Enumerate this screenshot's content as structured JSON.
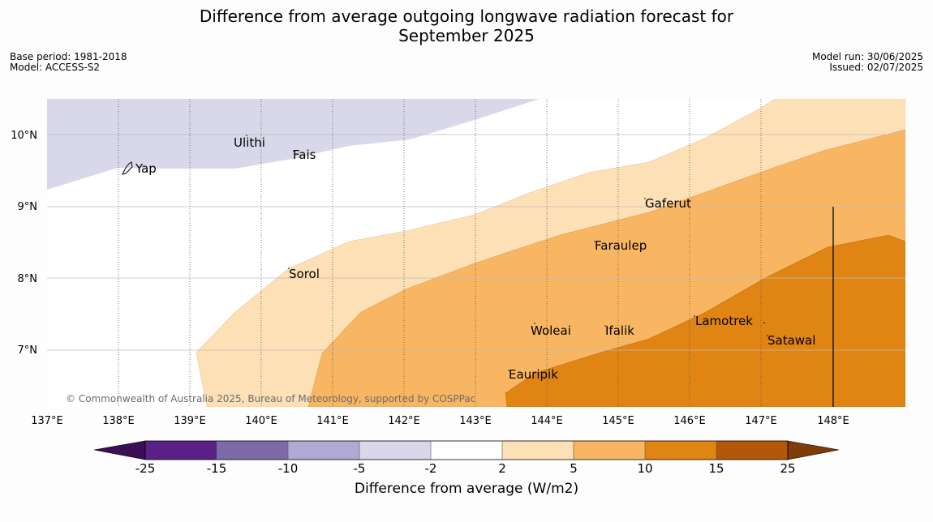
{
  "title": {
    "line1": "Difference from average outgoing longwave radiation forecast for",
    "line2": "September 2025"
  },
  "meta_left": {
    "base_period": "Base period: 1981-2018",
    "model": "Model: ACCESS-S2"
  },
  "meta_right": {
    "model_run": "Model run: 30/06/2025",
    "issued": "Issued: 02/07/2025"
  },
  "map": {
    "lon_labels": [
      "137°E",
      "138°E",
      "139°E",
      "140°E",
      "141°E",
      "142°E",
      "143°E",
      "144°E",
      "145°E",
      "146°E",
      "147°E",
      "148°E"
    ],
    "lat_labels": [
      "10°N",
      "9°N",
      "8°N",
      "7°N"
    ],
    "places": [
      {
        "name": "Ulithi"
      },
      {
        "name": "Fais"
      },
      {
        "name": "Yap"
      },
      {
        "name": "Gaferut"
      },
      {
        "name": "Faraulep"
      },
      {
        "name": "Sorol"
      },
      {
        "name": "Woleai"
      },
      {
        "name": "Ifalik"
      },
      {
        "name": "Lamotrek"
      },
      {
        "name": "Satawal"
      },
      {
        "name": "Eauripik"
      }
    ],
    "copyright": "© Commonwealth of Australia 2025, Bureau of Meteorology, supported by COSPPac"
  },
  "colorbar": {
    "ticks": [
      "-25",
      "-15",
      "-10",
      "-5",
      "-2",
      "2",
      "5",
      "10",
      "15",
      "25"
    ],
    "label": "Difference from average (W/m2)",
    "colors": [
      "#3b0f55",
      "#5a2286",
      "#7f6aa9",
      "#b0a9d2",
      "#d8d8ea",
      "#ffffff",
      "#fde0b6",
      "#f9b662",
      "#e08414",
      "#b45709",
      "#7f3b08"
    ]
  }
}
